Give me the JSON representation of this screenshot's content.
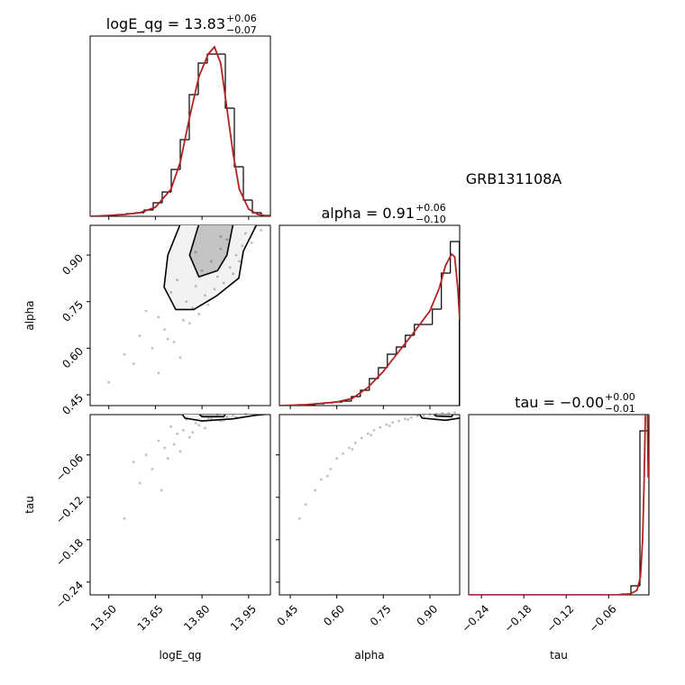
{
  "chart_data": {
    "type": "corner",
    "annotation": "GRB131108A",
    "hist_color": "#000000",
    "kde_color": "#b22222",
    "point_color": "#000000",
    "contour_color": "#000000",
    "contour_fills": [
      "#f2f2f2",
      "#c4c4c4"
    ],
    "hist_ylim": [
      0,
      200
    ],
    "parameters": [
      {
        "label": "logE_qg",
        "title": "logE_qg = 13.83",
        "title_sup": "+0.06",
        "title_sub": "−0.07",
        "lim": [
          13.44,
          14.02
        ],
        "ticks": [
          {
            "value": 13.5,
            "label": "13.50"
          },
          13.65,
          {
            "value": 13.8,
            "label": "13.80"
          },
          13.95
        ],
        "hist": {
          "bins": [
            13.44,
            13.469,
            13.498,
            13.527,
            13.556,
            13.585,
            13.614,
            13.643,
            13.672,
            13.701,
            13.73,
            13.759,
            13.788,
            13.817,
            13.846,
            13.875,
            13.904,
            13.933,
            13.962,
            13.991,
            14.02
          ],
          "counts": [
            0,
            0,
            1,
            2,
            3,
            4,
            7,
            15,
            27,
            52,
            85,
            135,
            170,
            180,
            180,
            120,
            55,
            18,
            4,
            1
          ]
        },
        "kde": {
          "x": [
            13.44,
            13.5,
            13.55,
            13.6,
            13.65,
            13.7,
            13.73,
            13.76,
            13.79,
            13.82,
            13.84,
            13.86,
            13.88,
            13.9,
            13.92,
            13.95,
            13.98,
            14.02
          ],
          "y": [
            0,
            1,
            2,
            4,
            10,
            30,
            60,
            110,
            155,
            180,
            188,
            170,
            120,
            70,
            30,
            8,
            2,
            0
          ]
        }
      },
      {
        "label": "alpha",
        "title": "alpha = 0.91",
        "title_sup": "+0.06",
        "title_sub": "−0.10",
        "lim": [
          0.415,
          0.996
        ],
        "ticks": [
          0.45,
          {
            "value": 0.6,
            "label": "0.60"
          },
          0.75,
          {
            "value": 0.9,
            "label": "0.90"
          }
        ],
        "hist": {
          "bins": [
            0.415,
            0.444,
            0.473,
            0.502,
            0.531,
            0.56,
            0.589,
            0.618,
            0.647,
            0.676,
            0.705,
            0.734,
            0.763,
            0.792,
            0.821,
            0.85,
            0.879,
            0.908,
            0.937,
            0.966,
            0.995
          ],
          "counts": [
            0,
            0,
            1,
            1,
            2,
            3,
            4,
            5,
            10,
            17,
            30,
            42,
            57,
            65,
            78,
            90,
            90,
            107,
            147,
            182
          ]
        },
        "kde": {
          "x": [
            0.415,
            0.5,
            0.6,
            0.65,
            0.7,
            0.75,
            0.8,
            0.85,
            0.9,
            0.93,
            0.95,
            0.97,
            0.98,
            0.99,
            0.996
          ],
          "y": [
            0,
            1,
            4,
            8,
            20,
            38,
            60,
            82,
            105,
            130,
            155,
            168,
            165,
            130,
            95
          ]
        }
      },
      {
        "label": "tau",
        "title": "tau = −0.00",
        "title_sup": "+0.00",
        "title_sub": "−0.01",
        "lim": [
          -0.258,
          -0.003
        ],
        "ticks": [
          {
            "value": -0.24,
            "label": "−0.24"
          },
          {
            "value": -0.18,
            "label": "−0.18"
          },
          {
            "value": -0.12,
            "label": "−0.12"
          },
          {
            "value": -0.06,
            "label": "−0.06"
          }
        ],
        "hist": {
          "bins": [
            -0.258,
            -0.24525,
            -0.2325,
            -0.21975,
            -0.207,
            -0.19425,
            -0.1815,
            -0.16875,
            -0.156,
            -0.14325,
            -0.1305,
            -0.11775,
            -0.105,
            -0.09225,
            -0.0795,
            -0.06675,
            -0.054,
            -0.04125,
            -0.0285,
            -0.01575,
            -0.003
          ],
          "counts": [
            0,
            0,
            0,
            0,
            0,
            0,
            0,
            0,
            0,
            0,
            0,
            0,
            0,
            0,
            0,
            0,
            0,
            1,
            10,
            182
          ]
        },
        "kde": {
          "x": [
            -0.258,
            -0.05,
            -0.03,
            -0.02,
            -0.015,
            -0.012,
            -0.01,
            -0.008,
            -0.006,
            -0.004
          ],
          "y": [
            0,
            0,
            1,
            5,
            20,
            60,
            120,
            200,
            260,
            130
          ]
        }
      }
    ],
    "pairs": [
      {
        "points": {
          "x": [
            13.62,
            13.66,
            13.7,
            13.72,
            13.75,
            13.78,
            13.8,
            13.83,
            13.86,
            13.88,
            13.91,
            13.94,
            13.97,
            13.68,
            13.74,
            13.77,
            13.81,
            13.85,
            13.89,
            13.93,
            13.6,
            13.64,
            13.71,
            13.76,
            13.79,
            13.84,
            13.87,
            13.92,
            13.96,
            13.99,
            13.55,
            13.58,
            13.66,
            13.73,
            13.82,
            13.9,
            13.5,
            13.69,
            13.78,
            13.86
          ],
          "y": [
            0.72,
            0.7,
            0.78,
            0.82,
            0.75,
            0.8,
            0.85,
            0.88,
            0.92,
            0.95,
            0.9,
            0.97,
            0.99,
            0.66,
            0.69,
            0.73,
            0.77,
            0.83,
            0.86,
            0.93,
            0.64,
            0.6,
            0.62,
            0.68,
            0.71,
            0.79,
            0.81,
            0.88,
            0.94,
            0.98,
            0.58,
            0.55,
            0.52,
            0.57,
            0.74,
            0.84,
            0.49,
            0.63,
            0.91,
            0.96
          ]
        },
        "contours": [
          {
            "x": [
              13.73,
              13.69,
              13.678,
              13.7155,
              13.7735,
              13.846,
              13.9185,
              13.933,
              13.9765
            ],
            "y": [
              1.0,
              0.9,
              0.797,
              0.7245,
              0.7245,
              0.768,
              0.826,
              0.913,
              1.0
            ]
          },
          {
            "x": [
              13.79,
              13.76,
              13.79,
              13.85,
              13.88,
              13.9
            ],
            "y": [
              1.0,
              0.9,
              0.83,
              0.85,
              0.9,
              1.0
            ]
          }
        ]
      },
      {
        "points": {
          "x": [
            13.8,
            13.85,
            13.9,
            13.75,
            13.7,
            13.82,
            13.88,
            13.78,
            13.72,
            13.66,
            13.94,
            13.86,
            13.74,
            13.68,
            13.62,
            13.79,
            13.83,
            13.91,
            13.76,
            13.71,
            13.64,
            13.58,
            13.69,
            13.81,
            13.87,
            13.73,
            13.6,
            13.67,
            13.55,
            13.77
          ],
          "y": [
            -0.005,
            -0.003,
            -0.004,
            -0.01,
            -0.02,
            -0.008,
            -0.006,
            -0.015,
            -0.03,
            -0.04,
            -0.002,
            -0.012,
            -0.025,
            -0.05,
            -0.06,
            -0.018,
            -0.009,
            -0.007,
            -0.035,
            -0.045,
            -0.08,
            -0.07,
            -0.065,
            -0.022,
            -0.011,
            -0.055,
            -0.1,
            -0.11,
            -0.15,
            -0.028
          ]
        },
        "contours": [
          {
            "x": [
              13.73,
              13.745,
              13.8,
              13.9,
              13.97,
              14.02
            ],
            "y": [
              0.002,
              -0.008,
              -0.012,
              -0.009,
              -0.004,
              -0.002
            ]
          },
          {
            "x": [
              13.78,
              13.8,
              13.87,
              13.88
            ],
            "y": [
              0.002,
              -0.006,
              -0.006,
              0.002
            ]
          }
        ]
      },
      {
        "points": {
          "x": [
            0.48,
            0.5,
            0.53,
            0.55,
            0.58,
            0.6,
            0.62,
            0.64,
            0.66,
            0.68,
            0.7,
            0.72,
            0.74,
            0.76,
            0.78,
            0.8,
            0.82,
            0.84,
            0.86,
            0.88,
            0.9,
            0.92,
            0.94,
            0.96,
            0.98,
            0.65,
            0.71,
            0.77,
            0.83,
            0.57
          ],
          "y": [
            -0.15,
            -0.13,
            -0.11,
            -0.095,
            -0.08,
            -0.065,
            -0.058,
            -0.05,
            -0.043,
            -0.036,
            -0.03,
            -0.025,
            -0.021,
            -0.017,
            -0.014,
            -0.012,
            -0.009,
            -0.007,
            -0.005,
            -0.004,
            -0.003,
            -0.002,
            -0.001,
            -0.001,
            0.0,
            -0.052,
            -0.032,
            -0.019,
            -0.01,
            -0.09
          ]
        },
        "contours": [
          {
            "x": [
              0.86,
              0.875,
              0.95,
              0.996
            ],
            "y": [
              0.002,
              -0.008,
              -0.011,
              -0.008
            ]
          },
          {
            "x": [
              0.9,
              0.92,
              0.97,
              0.98
            ],
            "y": [
              0.002,
              -0.005,
              -0.006,
              0.002
            ]
          }
        ]
      }
    ]
  }
}
